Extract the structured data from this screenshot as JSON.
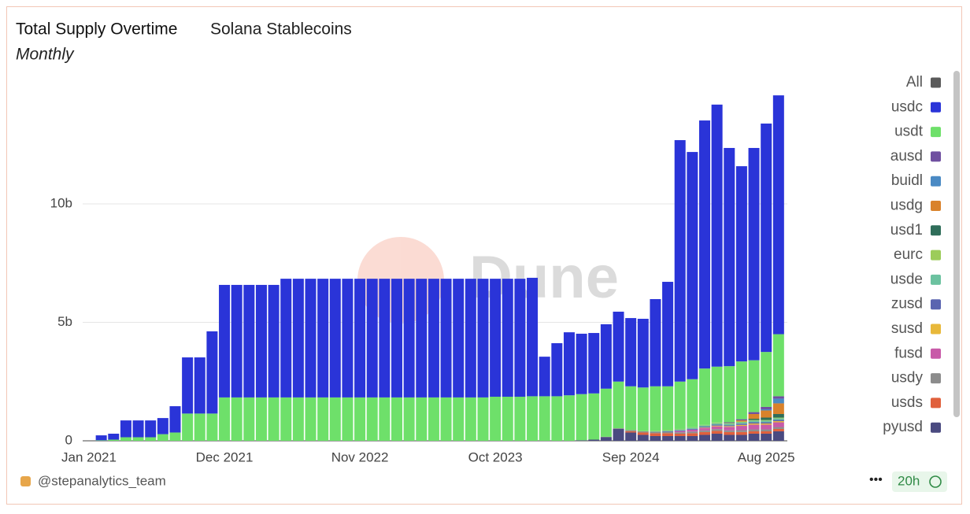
{
  "chart_data": {
    "type": "stacked_bar",
    "title": "Total Supply Overtime",
    "subtitle": "Solana Stablecoins",
    "period": "Monthly",
    "watermark": "Dune",
    "author": "@stepanalytics_team",
    "freshness": "20h",
    "legend_all": {
      "name": "All",
      "color": "#5a5a5a"
    },
    "categories": [
      "Jan 2021",
      null,
      null,
      null,
      null,
      null,
      null,
      null,
      null,
      null,
      null,
      "Dec 2021",
      null,
      null,
      null,
      null,
      null,
      null,
      null,
      null,
      null,
      null,
      "Nov 2022",
      null,
      null,
      null,
      null,
      null,
      null,
      null,
      null,
      null,
      null,
      "Oct 2023",
      null,
      null,
      null,
      null,
      null,
      null,
      null,
      null,
      null,
      null,
      "Sep 2024",
      null,
      null,
      null,
      null,
      null,
      null,
      null,
      null,
      null,
      null,
      "Aug 2025",
      null
    ],
    "ylim": [
      0,
      15
    ],
    "yticks": [
      0,
      {
        "value": 5,
        "label": "5b"
      },
      {
        "value": 10,
        "label": "10b"
      }
    ],
    "grid": true,
    "series": [
      {
        "name": "usdc",
        "color": "#2a34d8",
        "values": [
          0,
          0.21,
          0.25,
          0.71,
          0.71,
          0.71,
          0.68,
          1.11,
          2.37,
          2.37,
          3.47,
          4.75,
          4.75,
          4.75,
          4.75,
          4.75,
          5.01,
          5.01,
          5.01,
          5.01,
          5.01,
          5.01,
          5.01,
          5.01,
          5.01,
          5.01,
          5.01,
          5.01,
          5.01,
          5.01,
          5.01,
          5.01,
          5.01,
          4.98,
          4.98,
          4.98,
          5.0,
          1.67,
          2.24,
          2.66,
          2.55,
          2.55,
          2.72,
          2.95,
          2.88,
          2.9,
          3.68,
          4.41,
          10.19,
          9.59,
          10.47,
          11.06,
          9.21,
          8.24,
          8.96,
          9.64,
          10.08
        ]
      },
      {
        "name": "usdt",
        "color": "#6ee06a",
        "values": [
          0,
          0.02,
          0.05,
          0.15,
          0.15,
          0.15,
          0.28,
          0.35,
          1.15,
          1.15,
          1.15,
          1.83,
          1.83,
          1.83,
          1.83,
          1.83,
          1.83,
          1.83,
          1.83,
          1.83,
          1.83,
          1.83,
          1.83,
          1.83,
          1.83,
          1.83,
          1.83,
          1.83,
          1.83,
          1.83,
          1.83,
          1.83,
          1.83,
          1.86,
          1.86,
          1.86,
          1.88,
          1.88,
          1.88,
          1.92,
          1.95,
          1.95,
          2.03,
          1.97,
          1.84,
          1.84,
          1.88,
          1.85,
          2.0,
          2.03,
          2.38,
          2.36,
          2.37,
          2.44,
          2.19,
          2.32,
          2.62
        ]
      },
      {
        "name": "ausd",
        "color": "#6f4fa0",
        "values": [
          0,
          0,
          0,
          0,
          0,
          0,
          0,
          0,
          0,
          0,
          0,
          0,
          0,
          0,
          0,
          0,
          0,
          0,
          0,
          0,
          0,
          0,
          0,
          0,
          0,
          0,
          0,
          0,
          0,
          0,
          0,
          0,
          0,
          0,
          0,
          0,
          0,
          0,
          0,
          0,
          0,
          0,
          0,
          0,
          0,
          0,
          0,
          0,
          0,
          0,
          0,
          0,
          0.03,
          0.05,
          0.08,
          0.1,
          0.1
        ]
      },
      {
        "name": "buidl",
        "color": "#4a8ac4",
        "values": [
          0,
          0,
          0,
          0,
          0,
          0,
          0,
          0,
          0,
          0,
          0,
          0,
          0,
          0,
          0,
          0,
          0,
          0,
          0,
          0,
          0,
          0,
          0,
          0,
          0,
          0,
          0,
          0,
          0,
          0,
          0,
          0,
          0,
          0,
          0,
          0,
          0,
          0,
          0,
          0,
          0,
          0,
          0,
          0,
          0,
          0,
          0,
          0,
          0,
          0,
          0,
          0,
          0,
          0,
          0,
          0.05,
          0.2
        ]
      },
      {
        "name": "usdg",
        "color": "#d9822b",
        "values": [
          0,
          0,
          0,
          0,
          0,
          0,
          0,
          0,
          0,
          0,
          0,
          0,
          0,
          0,
          0,
          0,
          0,
          0,
          0,
          0,
          0,
          0,
          0,
          0,
          0,
          0,
          0,
          0,
          0,
          0,
          0,
          0,
          0,
          0,
          0,
          0,
          0,
          0,
          0,
          0,
          0,
          0,
          0,
          0,
          0,
          0,
          0,
          0,
          0,
          0,
          0,
          0,
          0,
          0.05,
          0.2,
          0.3,
          0.45
        ]
      },
      {
        "name": "usd1",
        "color": "#2f6e5a",
        "values": [
          0,
          0,
          0,
          0,
          0,
          0,
          0,
          0,
          0,
          0,
          0,
          0,
          0,
          0,
          0,
          0,
          0,
          0,
          0,
          0,
          0,
          0,
          0,
          0,
          0,
          0,
          0,
          0,
          0,
          0,
          0,
          0,
          0,
          0,
          0,
          0,
          0,
          0,
          0,
          0,
          0,
          0,
          0,
          0,
          0,
          0,
          0,
          0,
          0,
          0,
          0,
          0,
          0,
          0,
          0.05,
          0.1,
          0.15
        ]
      },
      {
        "name": "eurc",
        "color": "#9ccc5a",
        "values": [
          0,
          0,
          0,
          0,
          0,
          0,
          0,
          0,
          0,
          0,
          0,
          0,
          0,
          0,
          0,
          0,
          0,
          0,
          0,
          0,
          0,
          0,
          0,
          0,
          0,
          0,
          0,
          0,
          0,
          0,
          0,
          0,
          0,
          0,
          0,
          0,
          0,
          0,
          0,
          0,
          0,
          0,
          0,
          0,
          0.01,
          0.01,
          0.02,
          0.02,
          0.02,
          0.02,
          0.02,
          0.03,
          0.03,
          0.03,
          0.03,
          0.03,
          0.03
        ]
      },
      {
        "name": "usde",
        "color": "#6cc2a0",
        "values": [
          0,
          0,
          0,
          0,
          0,
          0,
          0,
          0,
          0,
          0,
          0,
          0,
          0,
          0,
          0,
          0,
          0,
          0,
          0,
          0,
          0,
          0,
          0,
          0,
          0,
          0,
          0,
          0,
          0,
          0,
          0,
          0,
          0,
          0,
          0,
          0,
          0,
          0,
          0,
          0,
          0,
          0,
          0,
          0,
          0,
          0,
          0.02,
          0.03,
          0.04,
          0.05,
          0.05,
          0.06,
          0.06,
          0.06,
          0.07,
          0.07,
          0.07
        ]
      },
      {
        "name": "zusd",
        "color": "#5a64b0",
        "values": [
          0,
          0,
          0,
          0,
          0,
          0,
          0,
          0,
          0,
          0,
          0,
          0,
          0,
          0,
          0,
          0,
          0,
          0,
          0,
          0,
          0,
          0,
          0,
          0,
          0,
          0,
          0,
          0,
          0,
          0,
          0,
          0,
          0,
          0,
          0,
          0,
          0,
          0,
          0,
          0,
          0,
          0,
          0,
          0,
          0,
          0,
          0,
          0.02,
          0.03,
          0.03,
          0.04,
          0.04,
          0.04,
          0.05,
          0.05,
          0.05,
          0.05
        ]
      },
      {
        "name": "susd",
        "color": "#e8b83a",
        "values": [
          0,
          0,
          0,
          0,
          0,
          0,
          0,
          0,
          0,
          0,
          0,
          0,
          0,
          0,
          0,
          0,
          0,
          0,
          0,
          0,
          0,
          0,
          0,
          0,
          0,
          0,
          0,
          0,
          0,
          0,
          0,
          0,
          0,
          0,
          0,
          0,
          0,
          0,
          0,
          0,
          0,
          0,
          0,
          0,
          0,
          0,
          0,
          0,
          0,
          0,
          0.02,
          0.03,
          0.03,
          0.04,
          0.05,
          0.05,
          0.05
        ]
      },
      {
        "name": "fusd",
        "color": "#c85aa8",
        "values": [
          0,
          0,
          0,
          0,
          0,
          0,
          0,
          0,
          0,
          0,
          0,
          0,
          0,
          0,
          0,
          0,
          0,
          0,
          0,
          0,
          0,
          0,
          0,
          0,
          0,
          0,
          0,
          0,
          0,
          0,
          0,
          0,
          0,
          0,
          0,
          0,
          0,
          0,
          0,
          0,
          0,
          0,
          0,
          0,
          0,
          0,
          0,
          0,
          0.05,
          0.08,
          0.1,
          0.12,
          0.15,
          0.18,
          0.2,
          0.2,
          0.2
        ]
      },
      {
        "name": "usdy",
        "color": "#8c8c8c",
        "values": [
          0,
          0,
          0,
          0,
          0,
          0,
          0,
          0,
          0,
          0,
          0,
          0,
          0,
          0,
          0,
          0,
          0,
          0,
          0,
          0,
          0,
          0,
          0,
          0,
          0,
          0,
          0,
          0,
          0,
          0,
          0,
          0,
          0,
          0,
          0,
          0,
          0,
          0,
          0,
          0,
          0,
          0,
          0.02,
          0.03,
          0.05,
          0.05,
          0.06,
          0.06,
          0.06,
          0.07,
          0.07,
          0.07,
          0.07,
          0.08,
          0.08,
          0.08,
          0.08
        ]
      },
      {
        "name": "usds",
        "color": "#e0603c",
        "values": [
          0,
          0,
          0,
          0,
          0,
          0,
          0,
          0,
          0,
          0,
          0,
          0,
          0,
          0,
          0,
          0,
          0,
          0,
          0,
          0,
          0,
          0,
          0,
          0,
          0,
          0,
          0,
          0,
          0,
          0,
          0,
          0,
          0,
          0,
          0,
          0,
          0,
          0,
          0,
          0,
          0,
          0,
          0,
          0,
          0.05,
          0.1,
          0.12,
          0.12,
          0.1,
          0.12,
          0.12,
          0.12,
          0.12,
          0.12,
          0.1,
          0.1,
          0.1
        ]
      },
      {
        "name": "pyusd",
        "color": "#4a4a80",
        "values": [
          0,
          0,
          0,
          0,
          0,
          0,
          0,
          0,
          0,
          0,
          0,
          0,
          0,
          0,
          0,
          0,
          0,
          0,
          0,
          0,
          0,
          0,
          0,
          0,
          0,
          0,
          0,
          0,
          0,
          0,
          0,
          0,
          0,
          0,
          0,
          0,
          0,
          0,
          0,
          0,
          0.02,
          0.05,
          0.15,
          0.5,
          0.35,
          0.25,
          0.2,
          0.2,
          0.2,
          0.2,
          0.25,
          0.3,
          0.25,
          0.25,
          0.3,
          0.3,
          0.4
        ]
      }
    ]
  }
}
